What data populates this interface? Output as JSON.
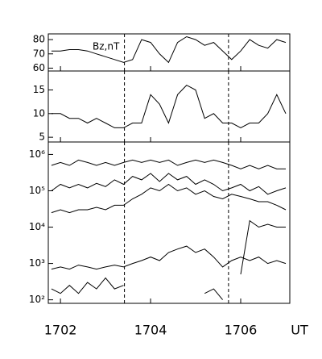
{
  "chart_data": [
    {
      "type": "line",
      "annotation": "Bz,nT",
      "x": [
        1701.8,
        1702.0,
        1702.2,
        1702.4,
        1702.6,
        1702.8,
        1703.0,
        1703.2,
        1703.4,
        1703.6,
        1703.8,
        1704.0,
        1704.2,
        1704.4,
        1704.6,
        1704.8,
        1705.0,
        1705.2,
        1705.4,
        1705.6,
        1705.8,
        1706.0,
        1706.2,
        1706.4,
        1706.6,
        1706.8,
        1707.0
      ],
      "xlim": [
        1701.73,
        1707.09
      ],
      "xticks": [
        1702,
        1704,
        1706
      ],
      "vlines": [
        1703.42,
        1705.73
      ],
      "ylim": [
        58,
        84
      ],
      "yticks": [
        60,
        70,
        80
      ],
      "log": false,
      "series": [
        {
          "color": "#000000",
          "values": [
            72,
            72,
            73,
            73,
            72,
            70,
            68,
            66,
            64,
            66,
            80,
            78,
            70,
            64,
            78,
            82,
            80,
            76,
            78,
            72,
            66,
            72,
            80,
            76,
            74,
            80,
            78
          ]
        }
      ]
    },
    {
      "type": "line",
      "x": [
        1701.8,
        1702.0,
        1702.2,
        1702.4,
        1702.6,
        1702.8,
        1703.0,
        1703.2,
        1703.4,
        1703.6,
        1703.8,
        1704.0,
        1704.2,
        1704.4,
        1704.6,
        1704.8,
        1705.0,
        1705.2,
        1705.4,
        1705.6,
        1705.8,
        1706.0,
        1706.2,
        1706.4,
        1706.6,
        1706.8,
        1707.0
      ],
      "xlim": [
        1701.73,
        1707.09
      ],
      "xticks": [
        1702,
        1704,
        1706
      ],
      "vlines": [
        1703.42,
        1705.73
      ],
      "ylim": [
        4,
        19
      ],
      "yticks": [
        5,
        10,
        15
      ],
      "log": false,
      "series": [
        {
          "color": "#000000",
          "values": [
            10,
            10,
            9,
            9,
            8,
            9,
            8,
            7,
            7,
            8,
            8,
            14,
            12,
            8,
            14,
            16,
            15,
            9,
            10,
            8,
            8,
            7,
            8,
            8,
            10,
            14,
            10
          ]
        }
      ]
    },
    {
      "type": "line",
      "x": [
        1701.8,
        1702.0,
        1702.2,
        1702.4,
        1702.6,
        1702.8,
        1703.0,
        1703.2,
        1703.4,
        1703.6,
        1703.8,
        1704.0,
        1704.2,
        1704.4,
        1704.6,
        1704.8,
        1705.0,
        1705.2,
        1705.4,
        1705.6,
        1705.8,
        1706.0,
        1706.2,
        1706.4,
        1706.6,
        1706.8,
        1707.0
      ],
      "xlim": [
        1701.73,
        1707.09
      ],
      "xticks": [
        1702,
        1704,
        1706
      ],
      "vlines": [
        1703.42,
        1705.73
      ],
      "xlabel": "UT",
      "ylim": [
        80,
        2200000
      ],
      "log": true,
      "yticks": [
        {
          "value": 100,
          "label": "10²"
        },
        {
          "value": 1000,
          "label": "10³"
        },
        {
          "value": 10000,
          "label": "10⁴"
        },
        {
          "value": 100000,
          "label": "10⁵"
        },
        {
          "value": 1000000,
          "label": "10⁶"
        }
      ],
      "series": [
        {
          "color": "#000000",
          "values": [
            500000,
            600000,
            500000,
            700000,
            600000,
            500000,
            600000,
            500000,
            600000,
            700000,
            600000,
            700000,
            600000,
            700000,
            500000,
            600000,
            700000,
            600000,
            700000,
            600000,
            500000,
            400000,
            500000,
            400000,
            500000,
            400000,
            400000
          ]
        },
        {
          "color": "#000000",
          "values": [
            100000,
            150000,
            120000,
            150000,
            120000,
            160000,
            130000,
            200000,
            150000,
            250000,
            200000,
            300000,
            180000,
            300000,
            200000,
            250000,
            150000,
            200000,
            150000,
            100000,
            120000,
            150000,
            100000,
            130000,
            80000,
            100000,
            120000
          ]
        },
        {
          "color": "#000000",
          "values": [
            25000,
            30000,
            25000,
            30000,
            30000,
            35000,
            30000,
            40000,
            40000,
            60000,
            80000,
            120000,
            100000,
            150000,
            100000,
            120000,
            80000,
            100000,
            70000,
            60000,
            80000,
            70000,
            60000,
            50000,
            50000,
            40000,
            30000
          ]
        },
        {
          "color": "#000000",
          "values": [
            700,
            800,
            700,
            900,
            800,
            700,
            800,
            900,
            800,
            1000,
            1200,
            1500,
            1200,
            2000,
            2500,
            3000,
            2000,
            2500,
            1500,
            800,
            1200,
            1500,
            1200,
            1500,
            1000,
            1200,
            1000
          ]
        },
        {
          "color": "#000000",
          "values": [
            200,
            150,
            250,
            150,
            300,
            200,
            400,
            200,
            250,
            null,
            null,
            null,
            null,
            null,
            null,
            null,
            null,
            150,
            200,
            100,
            null,
            500,
            15000,
            10000,
            12000,
            10000,
            10000
          ]
        }
      ]
    }
  ]
}
